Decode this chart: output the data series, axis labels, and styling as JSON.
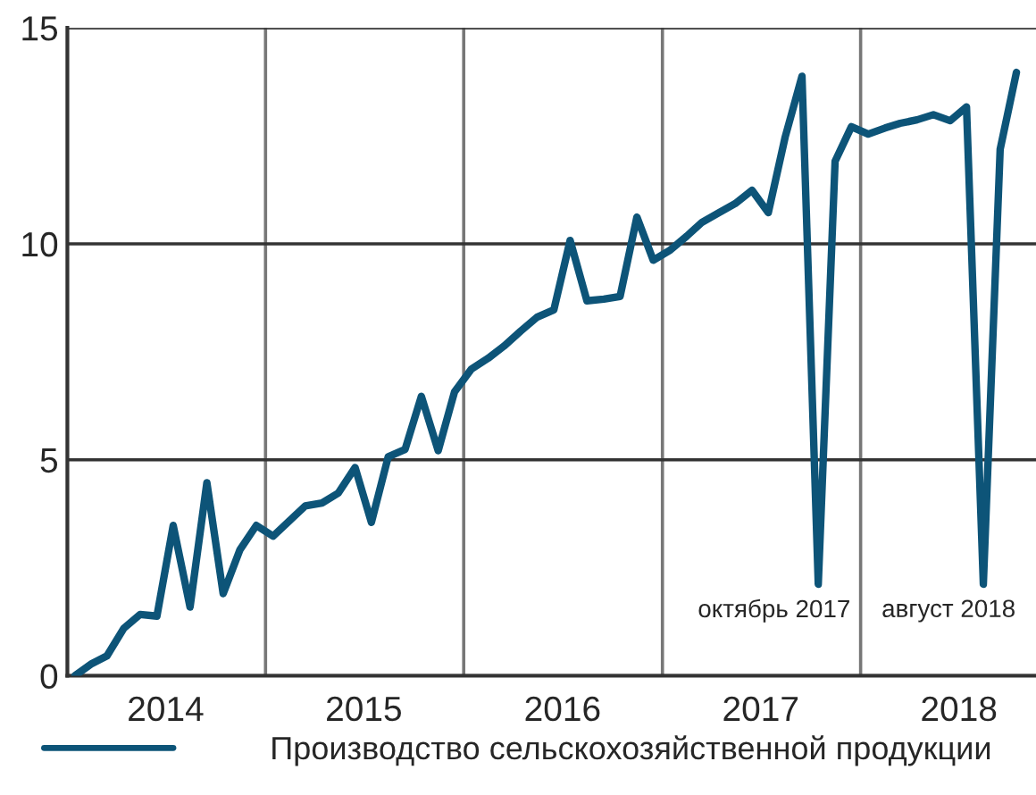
{
  "chart_data": {
    "type": "line",
    "x": [
      "2014-01-15",
      "2014-02-15",
      "2014-03-15",
      "2014-04-15",
      "2014-05-15",
      "2014-06-15",
      "2014-07-15",
      "2014-08-15",
      "2014-09-15",
      "2014-10-15",
      "2014-11-15",
      "2014-12-15",
      "2015-01-15",
      "2015-02-15",
      "2015-03-15",
      "2015-04-15",
      "2015-05-15",
      "2015-06-15",
      "2015-07-15",
      "2015-08-15",
      "2015-09-15",
      "2015-10-15",
      "2015-11-15",
      "2015-12-15",
      "2016-01-15",
      "2016-02-15",
      "2016-03-15",
      "2016-04-15",
      "2016-05-15",
      "2016-06-15",
      "2016-07-15",
      "2016-08-15",
      "2016-09-15",
      "2016-10-15",
      "2016-11-15",
      "2016-12-15",
      "2017-01-15",
      "2017-02-15",
      "2017-03-15",
      "2017-04-15",
      "2017-05-15",
      "2017-06-15",
      "2017-07-15",
      "2017-08-15",
      "2017-09-15",
      "2017-10-15",
      "2017-11-15",
      "2017-12-15",
      "2018-01-15",
      "2018-02-15",
      "2018-03-15",
      "2018-04-15",
      "2018-05-15",
      "2018-06-15",
      "2018-07-15",
      "2018-08-15",
      "2018-09-15",
      "2018-10-15"
    ],
    "series": [
      {
        "name": "Производство сельскохозяйственной продукции",
        "color": "#0d5478",
        "values": [
          0.0,
          0.28,
          0.46,
          1.1,
          1.42,
          1.38,
          3.48,
          1.59,
          4.47,
          1.9,
          2.92,
          3.48,
          3.23,
          3.6,
          3.93,
          4.0,
          4.23,
          4.82,
          3.55,
          5.07,
          5.24,
          6.47,
          5.21,
          6.57,
          7.1,
          7.35,
          7.63,
          7.98,
          8.3,
          8.47,
          10.08,
          8.68,
          8.72,
          8.78,
          10.62,
          9.62,
          9.85,
          10.18,
          10.5,
          10.72,
          10.93,
          11.24,
          10.72,
          12.47,
          13.88,
          2.12,
          11.91,
          12.71,
          12.54,
          12.68,
          12.79,
          12.87,
          12.99,
          12.85,
          13.17,
          2.12,
          12.19,
          13.97
        ]
      }
    ],
    "xlim": [
      "2014-01-01",
      "2018-11-20"
    ],
    "xticks": [
      {
        "value": "2014-01-01",
        "label": null
      },
      {
        "value": "2014-07-01",
        "label": "2014"
      },
      {
        "value": "2015-01-01",
        "label": null
      },
      {
        "value": "2015-07-01",
        "label": "2015"
      },
      {
        "value": "2016-01-01",
        "label": null
      },
      {
        "value": "2016-07-01",
        "label": "2016"
      },
      {
        "value": "2017-01-01",
        "label": null
      },
      {
        "value": "2017-07-01",
        "label": "2017"
      },
      {
        "value": "2018-01-01",
        "label": null
      },
      {
        "value": "2018-07-01",
        "label": "2018"
      }
    ],
    "ylim": [
      0,
      15
    ],
    "yticks": [
      0,
      5,
      10,
      15
    ],
    "grid": true,
    "legend": "bottom",
    "marker": "none",
    "line_style": "solid",
    "annotations": [
      {
        "text": "октябрь 2017",
        "x": "2017-10-15",
        "y": 2.12
      },
      {
        "text": "август 2018",
        "x": "2018-08-15",
        "y": 2.12
      }
    ]
  }
}
